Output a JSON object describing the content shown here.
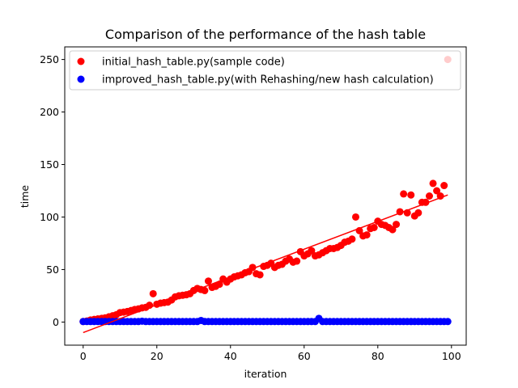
{
  "chart_data": {
    "type": "scatter",
    "title": "Comparison of the performance of the hash table",
    "xlabel": "iteration",
    "ylabel": "time",
    "xlim": [
      -5,
      104
    ],
    "ylim": [
      -22,
      262
    ],
    "x_ticks": [
      0,
      20,
      40,
      60,
      80,
      100
    ],
    "y_ticks": [
      0,
      50,
      100,
      150,
      200,
      250
    ],
    "grid": false,
    "legend_position": "top-right",
    "colors": {
      "initial": "#ff0000",
      "improved": "#0000ff"
    },
    "series": [
      {
        "name": "initial_hash_table.py(sample code)",
        "color": "#ff0000",
        "x": [
          0,
          1,
          2,
          3,
          4,
          5,
          6,
          7,
          8,
          9,
          10,
          11,
          12,
          13,
          14,
          15,
          16,
          17,
          18,
          19,
          20,
          21,
          22,
          23,
          24,
          25,
          26,
          27,
          28,
          29,
          30,
          31,
          32,
          33,
          34,
          35,
          36,
          37,
          38,
          39,
          40,
          41,
          42,
          43,
          44,
          45,
          46,
          47,
          48,
          49,
          50,
          51,
          52,
          53,
          54,
          55,
          56,
          57,
          58,
          59,
          60,
          61,
          62,
          63,
          64,
          65,
          66,
          67,
          68,
          69,
          70,
          71,
          72,
          73,
          74,
          75,
          76,
          77,
          78,
          79,
          80,
          81,
          82,
          83,
          84,
          85,
          86,
          87,
          88,
          89,
          90,
          91,
          92,
          93,
          94,
          95,
          96,
          97,
          98,
          99
        ],
        "y": [
          0.5,
          1,
          2,
          2.5,
          3,
          3.5,
          4,
          5,
          6,
          7,
          9,
          9.5,
          10,
          11,
          12,
          12.5,
          13.5,
          14,
          16,
          27,
          17,
          18,
          18.5,
          19,
          21,
          24,
          25,
          25.5,
          26,
          27,
          30,
          32,
          31,
          30,
          39,
          33,
          34,
          36,
          41,
          38,
          41,
          43,
          44,
          45,
          47,
          48,
          52,
          46,
          45,
          53,
          54,
          56,
          52,
          54,
          55,
          58,
          60,
          57,
          58,
          67,
          63,
          65,
          68,
          63,
          64,
          66,
          68,
          70,
          70,
          71,
          73,
          76,
          77,
          79,
          100,
          87,
          82,
          83,
          89,
          90,
          96,
          93,
          92,
          90,
          88,
          93,
          105,
          122,
          104,
          121,
          101,
          104,
          114,
          114,
          120,
          132,
          125,
          120,
          130,
          250
        ]
      },
      {
        "name": "improved_hash_table.py(with Rehashing/new hash calculation)",
        "color": "#0000ff",
        "x": [
          0,
          1,
          2,
          3,
          4,
          5,
          6,
          7,
          8,
          9,
          10,
          11,
          12,
          13,
          14,
          15,
          16,
          17,
          18,
          19,
          20,
          21,
          22,
          23,
          24,
          25,
          26,
          27,
          28,
          29,
          30,
          31,
          32,
          33,
          34,
          35,
          36,
          37,
          38,
          39,
          40,
          41,
          42,
          43,
          44,
          45,
          46,
          47,
          48,
          49,
          50,
          51,
          52,
          53,
          54,
          55,
          56,
          57,
          58,
          59,
          60,
          61,
          62,
          63,
          64,
          65,
          66,
          67,
          68,
          69,
          70,
          71,
          72,
          73,
          74,
          75,
          76,
          77,
          78,
          79,
          80,
          81,
          82,
          83,
          84,
          85,
          86,
          87,
          88,
          89,
          90,
          91,
          92,
          93,
          94,
          95,
          96,
          97,
          98,
          99
        ],
        "y": [
          0.5,
          0.5,
          0.5,
          0.5,
          0.5,
          0.5,
          0.5,
          0.5,
          0.5,
          0.5,
          0.5,
          0.5,
          0.5,
          0.5,
          0.5,
          0.5,
          0.8,
          0.5,
          0.5,
          0.5,
          0.5,
          0.5,
          0.5,
          0.5,
          0.5,
          0.5,
          0.5,
          0.5,
          0.5,
          0.5,
          0.5,
          0.5,
          1.5,
          0.5,
          0.5,
          0.5,
          0.5,
          0.5,
          0.5,
          0.5,
          0.5,
          0.5,
          0.5,
          0.5,
          0.5,
          0.5,
          0.5,
          0.5,
          0.5,
          0.5,
          0.5,
          0.5,
          0.5,
          0.5,
          0.5,
          0.5,
          0.5,
          0.5,
          0.5,
          0.5,
          0.5,
          0.5,
          0.5,
          0.5,
          3.5,
          0.5,
          0.5,
          0.5,
          0.5,
          0.5,
          0.5,
          0.5,
          0.5,
          0.5,
          0.5,
          0.5,
          0.5,
          0.5,
          0.5,
          0.5,
          0.5,
          0.5,
          0.5,
          0.5,
          0.5,
          0.5,
          0.5,
          0.5,
          0.5,
          0.5,
          0.5,
          0.5,
          0.5,
          0.5,
          0.5,
          0.5,
          0.5,
          0.5,
          0.5,
          0.5
        ]
      }
    ],
    "trend_line": {
      "color": "#ff0000",
      "x": [
        0,
        99
      ],
      "y": [
        -10,
        121
      ]
    }
  }
}
